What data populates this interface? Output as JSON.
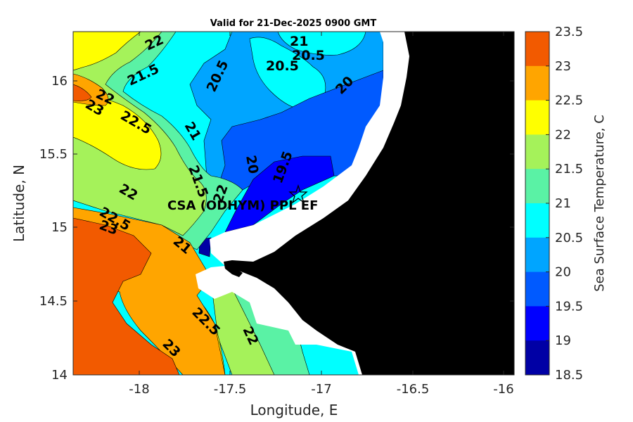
{
  "title": "Valid for 21-Dec-2025 0900 GMT",
  "x_axis": {
    "label": "Longitude, E",
    "ticks": [
      "-18",
      "-17.5",
      "-17",
      "-16.5",
      "-16"
    ]
  },
  "y_axis": {
    "label": "Latitude, N",
    "ticks": [
      "16",
      "15.5",
      "15",
      "14.5",
      "14"
    ]
  },
  "colorbar": {
    "label": "Sea Surface Temperature, C",
    "ticks": [
      "23.5",
      "23",
      "22.5",
      "22",
      "21.5",
      "21",
      "20.5",
      "20",
      "19.5",
      "19",
      "18.5"
    ],
    "colors": [
      "#f25a00",
      "#ffa500",
      "#ffff00",
      "#a5f25a",
      "#5af2a5",
      "#00ffff",
      "#00a5ff",
      "#005aff",
      "#0000ff",
      "#0000a5"
    ]
  },
  "station": {
    "label": "CSA (ODHYM) PPL EF",
    "symbol": "star-icon"
  },
  "land_color": "#000000",
  "contour_labels": [
    "22",
    "21.5",
    "22",
    "23",
    "22.5",
    "20.5",
    "21",
    "20.5",
    "20.5",
    "20",
    "21",
    "20",
    "19.5",
    "21.5",
    "22",
    "22",
    "22.5",
    "23",
    "21",
    "22.5",
    "22",
    "23"
  ],
  "chart_data": {
    "type": "heatmap",
    "title": "Valid for 21-Dec-2025 0900 GMT",
    "xlabel": "Longitude, E",
    "ylabel": "Latitude, N",
    "xlim": [
      -18.35,
      -15.93
    ],
    "ylim": [
      14.0,
      16.33
    ],
    "colorbar_label": "Sea Surface Temperature, C",
    "color_range": [
      18.5,
      23.5
    ],
    "station": {
      "name": "CSA (ODHYM) PPL EF",
      "lon": -17.1,
      "lat": 15.22
    },
    "contour_levels": [
      19.5,
      20,
      20.5,
      21,
      21.5,
      22,
      22.5,
      23
    ]
  }
}
